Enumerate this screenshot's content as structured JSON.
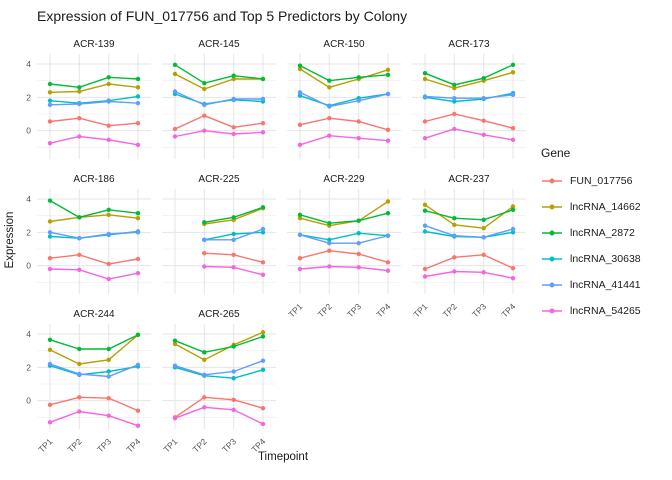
{
  "title": "Expression of FUN_017756 and Top 5 Predictors by Colony",
  "axes": {
    "x_label": "Timepoint",
    "y_label": "Expression",
    "x_ticks": [
      "TP1",
      "TP2",
      "TP3",
      "TP4"
    ],
    "y_ticks": [
      4,
      2,
      0
    ]
  },
  "legend": {
    "title": "Gene",
    "items": [
      {
        "label": "FUN_017756",
        "color": "#F8766D"
      },
      {
        "label": "lncRNA_14662",
        "color": "#B79F00"
      },
      {
        "label": "lncRNA_2872",
        "color": "#00BA38"
      },
      {
        "label": "lncRNA_30638",
        "color": "#00BFC4"
      },
      {
        "label": "lncRNA_41441",
        "color": "#619CFF"
      },
      {
        "label": "lncRNA_54265",
        "color": "#F564E2"
      }
    ]
  },
  "chart_data": {
    "type": "line",
    "title": "Expression of FUN_017756 and Top 5 Predictors by Colony",
    "xlabel": "Timepoint",
    "ylabel": "Expression",
    "x": [
      "TP1",
      "TP2",
      "TP3",
      "TP4"
    ],
    "ylim": [
      -1.7,
      4.6
    ],
    "yticks": [
      4,
      2,
      0
    ],
    "yticks_minor": [
      3,
      1,
      -1
    ],
    "grid": "on",
    "legend_position": "right",
    "series_colors": {
      "FUN_017756": "#F8766D",
      "lncRNA_14662": "#B79F00",
      "lncRNA_2872": "#00BA38",
      "lncRNA_30638": "#00BFC4",
      "lncRNA_41441": "#619CFF",
      "lncRNA_54265": "#F564E2"
    },
    "facets": [
      {
        "colony": "ACR-139",
        "series": [
          {
            "name": "FUN_017756",
            "values": [
              0.55,
              0.75,
              0.3,
              0.45
            ]
          },
          {
            "name": "lncRNA_14662",
            "values": [
              2.3,
              2.35,
              2.8,
              2.6
            ]
          },
          {
            "name": "lncRNA_2872",
            "values": [
              2.8,
              2.6,
              3.2,
              3.1
            ]
          },
          {
            "name": "lncRNA_30638",
            "values": [
              1.8,
              1.65,
              1.8,
              2.05
            ]
          },
          {
            "name": "lncRNA_41441",
            "values": [
              1.55,
              1.6,
              1.75,
              1.65
            ]
          },
          {
            "name": "lncRNA_54265",
            "values": [
              -0.75,
              -0.35,
              -0.55,
              -0.85
            ]
          }
        ]
      },
      {
        "colony": "ACR-145",
        "series": [
          {
            "name": "FUN_017756",
            "values": [
              0.1,
              0.9,
              0.2,
              0.45
            ]
          },
          {
            "name": "lncRNA_14662",
            "values": [
              3.4,
              2.5,
              3.1,
              3.1
            ]
          },
          {
            "name": "lncRNA_2872",
            "values": [
              3.95,
              2.85,
              3.3,
              3.1
            ]
          },
          {
            "name": "lncRNA_30638",
            "values": [
              2.2,
              1.6,
              1.85,
              1.75
            ]
          },
          {
            "name": "lncRNA_41441",
            "values": [
              2.35,
              1.55,
              1.9,
              1.9
            ]
          },
          {
            "name": "lncRNA_54265",
            "values": [
              -0.35,
              0.0,
              -0.2,
              -0.1
            ]
          }
        ]
      },
      {
        "colony": "ACR-150",
        "series": [
          {
            "name": "FUN_017756",
            "values": [
              0.35,
              0.75,
              0.55,
              0.05
            ]
          },
          {
            "name": "lncRNA_14662",
            "values": [
              3.7,
              2.6,
              3.1,
              3.65
            ]
          },
          {
            "name": "lncRNA_2872",
            "values": [
              3.9,
              3.0,
              3.2,
              3.35
            ]
          },
          {
            "name": "lncRNA_30638",
            "values": [
              2.1,
              1.5,
              1.95,
              2.2
            ]
          },
          {
            "name": "lncRNA_41441",
            "values": [
              2.3,
              1.45,
              1.8,
              2.2
            ]
          },
          {
            "name": "lncRNA_54265",
            "values": [
              -0.85,
              -0.3,
              -0.45,
              -0.6
            ]
          }
        ]
      },
      {
        "colony": "ACR-173",
        "series": [
          {
            "name": "FUN_017756",
            "values": [
              0.55,
              1.0,
              0.6,
              0.15
            ]
          },
          {
            "name": "lncRNA_14662",
            "values": [
              3.1,
              2.55,
              3.0,
              3.5
            ]
          },
          {
            "name": "lncRNA_2872",
            "values": [
              3.45,
              2.75,
              3.15,
              3.95
            ]
          },
          {
            "name": "lncRNA_30638",
            "values": [
              2.0,
              1.75,
              1.9,
              2.25
            ]
          },
          {
            "name": "lncRNA_41441",
            "values": [
              2.05,
              1.95,
              1.95,
              2.15
            ]
          },
          {
            "name": "lncRNA_54265",
            "values": [
              -0.45,
              0.1,
              -0.25,
              -0.55
            ]
          }
        ]
      },
      {
        "colony": "ACR-186",
        "series": [
          {
            "name": "FUN_017756",
            "values": [
              0.45,
              0.65,
              0.1,
              0.4
            ]
          },
          {
            "name": "lncRNA_14662",
            "values": [
              2.65,
              2.9,
              3.05,
              2.85
            ]
          },
          {
            "name": "lncRNA_2872",
            "values": [
              3.9,
              2.9,
              3.35,
              3.15
            ]
          },
          {
            "name": "lncRNA_30638",
            "values": [
              1.75,
              1.65,
              1.85,
              2.05
            ]
          },
          {
            "name": "lncRNA_41441",
            "values": [
              2.0,
              1.65,
              1.9,
              2.0
            ]
          },
          {
            "name": "lncRNA_54265",
            "values": [
              -0.2,
              -0.25,
              -0.8,
              -0.45
            ]
          }
        ]
      },
      {
        "colony": "ACR-225",
        "series": [
          {
            "name": "FUN_017756",
            "values": [
              null,
              0.75,
              0.65,
              0.2
            ]
          },
          {
            "name": "lncRNA_14662",
            "values": [
              null,
              2.5,
              2.75,
              3.45
            ]
          },
          {
            "name": "lncRNA_2872",
            "values": [
              null,
              2.6,
              2.9,
              3.5
            ]
          },
          {
            "name": "lncRNA_30638",
            "values": [
              null,
              1.55,
              1.9,
              2.0
            ]
          },
          {
            "name": "lncRNA_41441",
            "values": [
              null,
              1.55,
              1.55,
              2.2
            ]
          },
          {
            "name": "lncRNA_54265",
            "values": [
              null,
              -0.05,
              -0.1,
              -0.55
            ]
          }
        ]
      },
      {
        "colony": "ACR-229",
        "series": [
          {
            "name": "FUN_017756",
            "values": [
              0.45,
              0.9,
              0.7,
              0.2
            ]
          },
          {
            "name": "lncRNA_14662",
            "values": [
              2.85,
              2.4,
              2.7,
              3.85
            ]
          },
          {
            "name": "lncRNA_2872",
            "values": [
              3.05,
              2.55,
              2.7,
              3.15
            ]
          },
          {
            "name": "lncRNA_30638",
            "values": [
              1.85,
              1.55,
              1.95,
              1.8
            ]
          },
          {
            "name": "lncRNA_41441",
            "values": [
              1.85,
              1.35,
              1.35,
              1.8
            ]
          },
          {
            "name": "lncRNA_54265",
            "values": [
              -0.2,
              -0.05,
              -0.1,
              -0.3
            ]
          }
        ]
      },
      {
        "colony": "ACR-237",
        "series": [
          {
            "name": "FUN_017756",
            "values": [
              -0.2,
              0.5,
              0.65,
              -0.15
            ]
          },
          {
            "name": "lncRNA_14662",
            "values": [
              3.65,
              2.45,
              2.25,
              3.55
            ]
          },
          {
            "name": "lncRNA_2872",
            "values": [
              3.3,
              2.85,
              2.75,
              3.35
            ]
          },
          {
            "name": "lncRNA_30638",
            "values": [
              2.05,
              1.75,
              1.7,
              2.0
            ]
          },
          {
            "name": "lncRNA_41441",
            "values": [
              2.4,
              1.8,
              1.7,
              2.2
            ]
          },
          {
            "name": "lncRNA_54265",
            "values": [
              -0.65,
              -0.35,
              -0.4,
              -0.75
            ]
          }
        ]
      },
      {
        "colony": "ACR-244",
        "series": [
          {
            "name": "FUN_017756",
            "values": [
              -0.25,
              0.2,
              0.15,
              -0.6
            ]
          },
          {
            "name": "lncRNA_14662",
            "values": [
              3.05,
              2.2,
              2.45,
              3.95
            ]
          },
          {
            "name": "lncRNA_2872",
            "values": [
              3.65,
              3.1,
              3.1,
              3.95
            ]
          },
          {
            "name": "lncRNA_30638",
            "values": [
              2.1,
              1.55,
              1.75,
              2.05
            ]
          },
          {
            "name": "lncRNA_41441",
            "values": [
              2.2,
              1.6,
              1.45,
              2.15
            ]
          },
          {
            "name": "lncRNA_54265",
            "values": [
              -1.3,
              -0.65,
              -0.9,
              -1.5
            ]
          }
        ]
      },
      {
        "colony": "ACR-265",
        "series": [
          {
            "name": "FUN_017756",
            "values": [
              -1.0,
              0.2,
              0.05,
              -0.45
            ]
          },
          {
            "name": "lncRNA_14662",
            "values": [
              3.4,
              2.45,
              3.35,
              4.1
            ]
          },
          {
            "name": "lncRNA_2872",
            "values": [
              3.6,
              2.9,
              3.25,
              3.85
            ]
          },
          {
            "name": "lncRNA_30638",
            "values": [
              2.0,
              1.5,
              1.35,
              1.85
            ]
          },
          {
            "name": "lncRNA_41441",
            "values": [
              2.1,
              1.55,
              1.75,
              2.4
            ]
          },
          {
            "name": "lncRNA_54265",
            "values": [
              -1.05,
              -0.4,
              -0.55,
              -1.4
            ]
          }
        ]
      }
    ]
  },
  "style": {
    "grid_major_color": "#E4E4E4",
    "grid_minor_color": "#F1F1F1",
    "tick_text_color": "#555555"
  }
}
